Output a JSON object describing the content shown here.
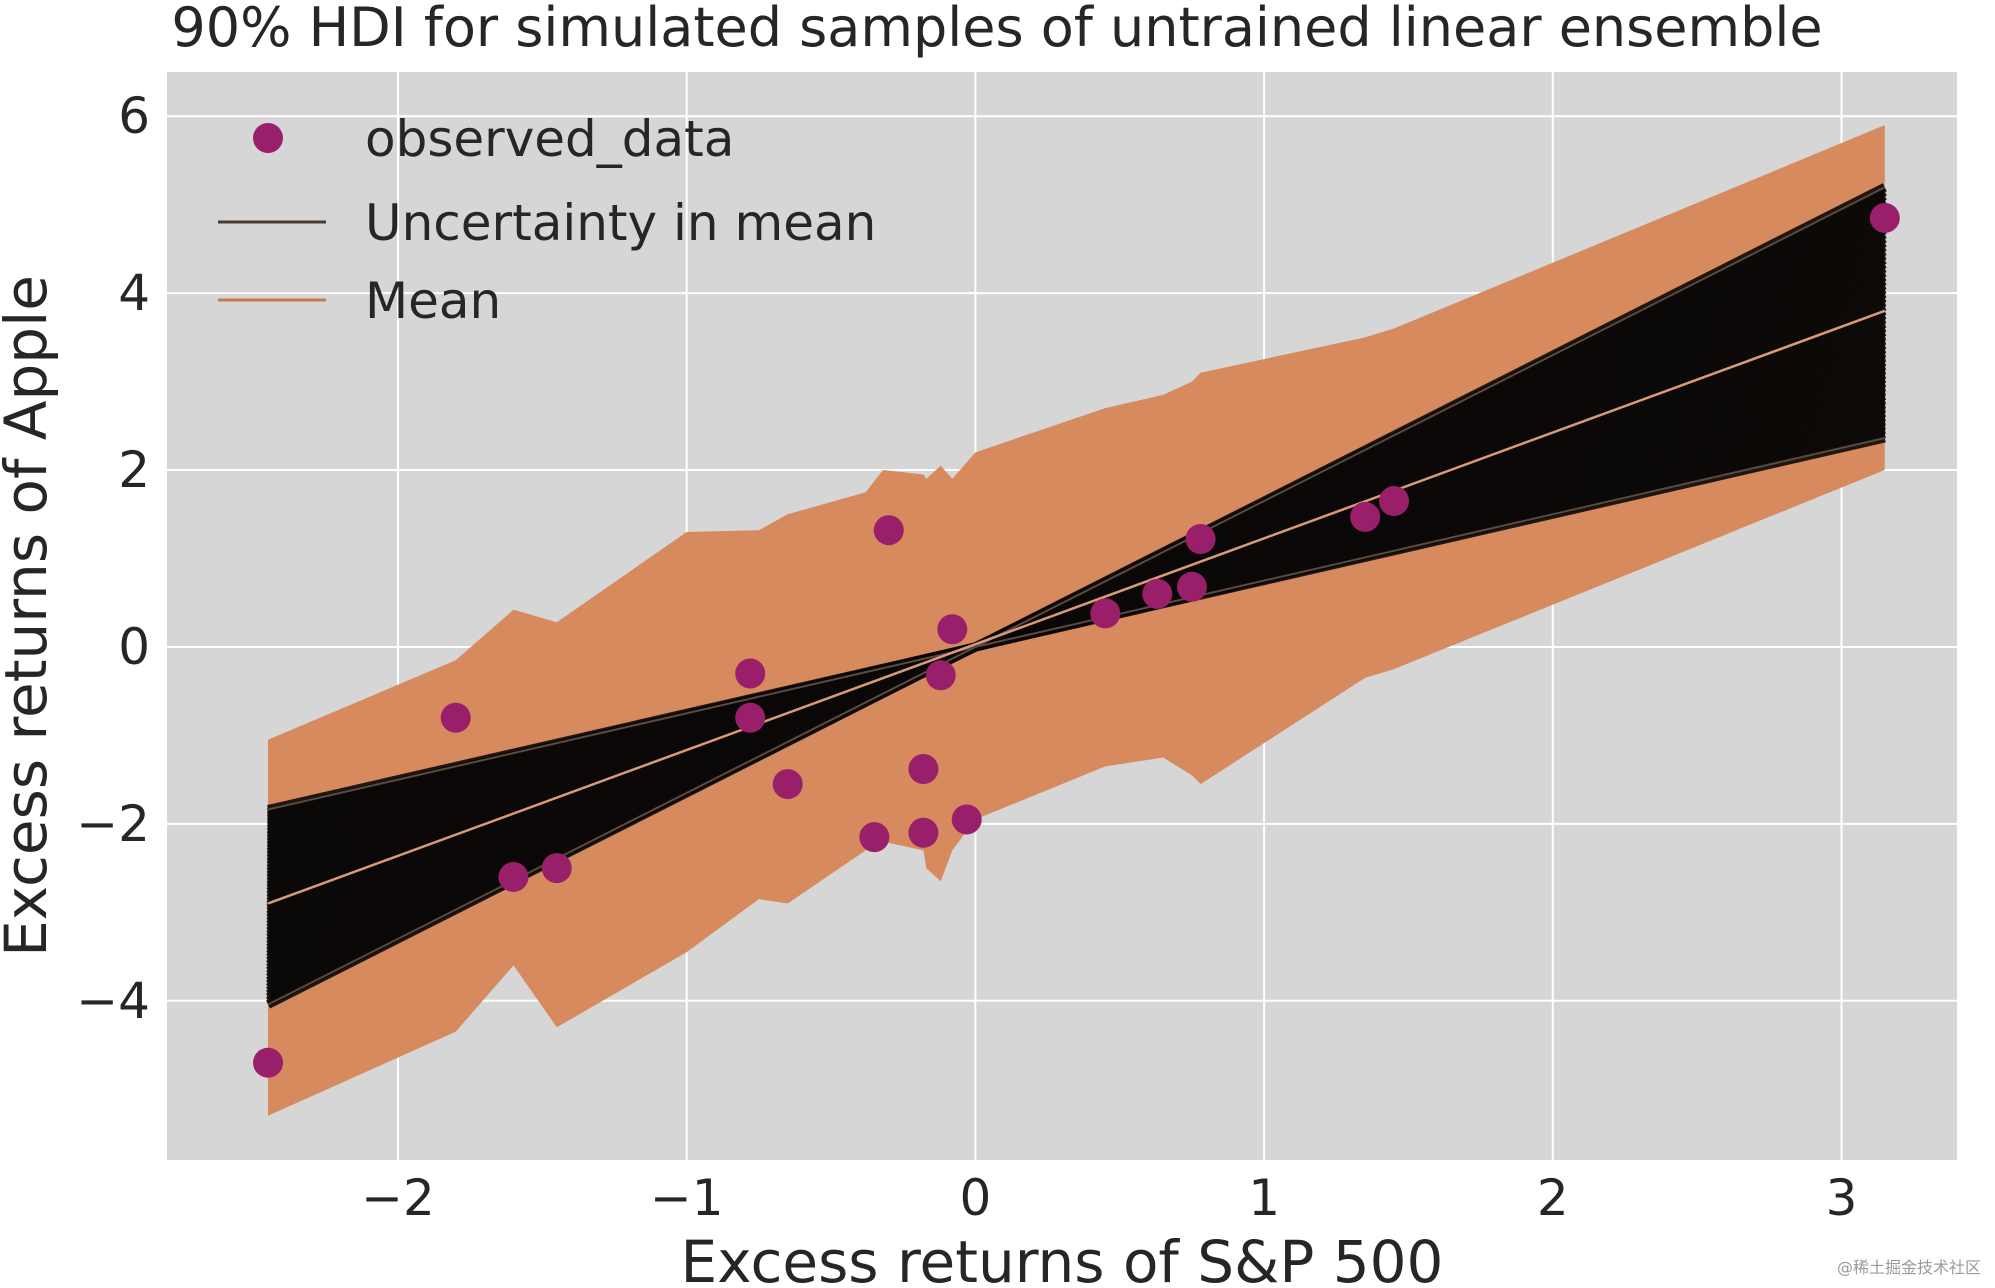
{
  "chart_data": {
    "type": "scatter",
    "title": "90% HDI for simulated samples of untrained linear ensemble",
    "xlabel": "Excess returns of S&P 500",
    "ylabel": "Excess returns of Apple",
    "xlim": [
      -2.8,
      3.4
    ],
    "ylim": [
      -5.8,
      6.5
    ],
    "xticks": [
      -2,
      -1,
      0,
      1,
      2,
      3
    ],
    "yticks": [
      -4,
      -2,
      0,
      2,
      4,
      6
    ],
    "xtick_labels": [
      "−2",
      "−1",
      "0",
      "1",
      "2",
      "3"
    ],
    "ytick_labels": [
      "−4",
      "−2",
      "0",
      "2",
      "4",
      "6"
    ],
    "grid": true,
    "legend_position": "top-left",
    "legend": [
      {
        "label": "observed_data",
        "kind": "marker"
      },
      {
        "label": "Uncertainty in mean",
        "kind": "line"
      },
      {
        "label": "Mean",
        "kind": "line"
      }
    ],
    "colors": {
      "background": "#d6d6d6",
      "grid": "#ffffff",
      "hdi_band": "#d68a5e",
      "uncertainty_lines": "#0b0908",
      "mean_line": "#d99a78",
      "observed": "#9a1f6a",
      "legend_line": "#4a3a30"
    },
    "hdi_band": {
      "x": [
        -2.45,
        -1.8,
        -1.6,
        -1.45,
        -1.0,
        -0.75,
        -0.65,
        -0.38,
        -0.32,
        -0.18,
        -0.17,
        -0.12,
        -0.08,
        0.0,
        0.45,
        0.65,
        0.75,
        0.78,
        1.35,
        1.45,
        3.15
      ],
      "upper": [
        -1.05,
        -0.15,
        0.42,
        0.28,
        1.3,
        1.32,
        1.5,
        1.75,
        2.0,
        1.95,
        1.9,
        2.05,
        1.9,
        2.2,
        2.7,
        2.85,
        3.0,
        3.1,
        3.5,
        3.6,
        5.9
      ],
      "lower": [
        -5.3,
        -4.35,
        -3.6,
        -4.3,
        -3.45,
        -2.85,
        -2.9,
        -2.3,
        -2.2,
        -2.3,
        -2.5,
        -2.65,
        -2.3,
        -1.95,
        -1.35,
        -1.25,
        -1.45,
        -1.55,
        -0.35,
        -0.25,
        2.0
      ]
    },
    "uncertainty": {
      "pivot": [
        0.0,
        0.0
      ],
      "slope_min": 0.75,
      "slope_max": 1.65,
      "n_lines": 60
    },
    "mean_line": {
      "x": [
        -2.45,
        3.15
      ],
      "y": [
        -2.9,
        3.8
      ]
    },
    "observed_data": {
      "x": [
        -2.45,
        -1.8,
        -1.6,
        -1.45,
        -0.78,
        -0.78,
        -0.65,
        -0.35,
        -0.3,
        -0.18,
        -0.18,
        -0.12,
        -0.08,
        -0.03,
        0.45,
        0.63,
        0.75,
        0.78,
        1.35,
        1.45,
        3.15
      ],
      "y": [
        -4.7,
        -0.8,
        -2.6,
        -2.5,
        -0.8,
        -0.3,
        -1.55,
        -2.15,
        1.32,
        -1.38,
        -2.1,
        -0.32,
        0.2,
        -1.95,
        0.38,
        0.6,
        0.68,
        1.22,
        1.47,
        1.65,
        4.85
      ]
    }
  },
  "watermark": "@稀土掘金技术社区"
}
